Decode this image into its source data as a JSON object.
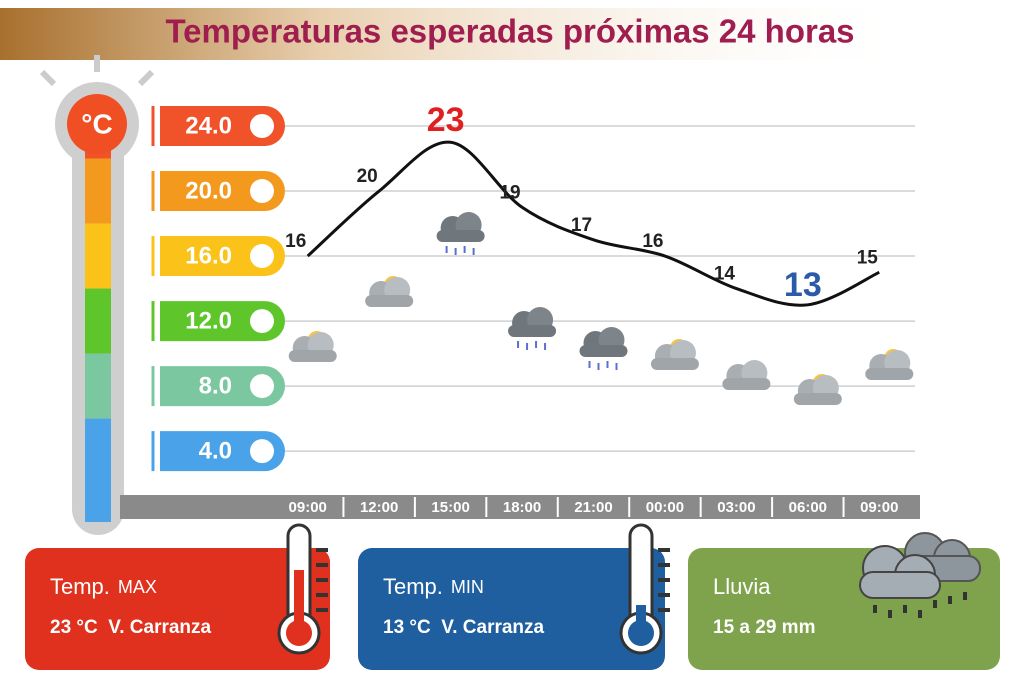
{
  "chart_data": {
    "type": "line",
    "title": "Temperaturas esperadas próximas 24 horas",
    "unit": "°C",
    "categories": [
      "09:00",
      "12:00",
      "15:00",
      "18:00",
      "21:00",
      "00:00",
      "03:00",
      "06:00",
      "09:00"
    ],
    "values": [
      16,
      20,
      23,
      19,
      17,
      16,
      14,
      13,
      15
    ],
    "color": "#111111",
    "max_color": "#e02020",
    "min_color": "#2a5aa8",
    "ylim": [
      1.3,
      25.6
    ],
    "yticks": [
      {
        "value": 24,
        "label": "24.0"
      },
      {
        "value": 20,
        "label": "20.0"
      },
      {
        "value": 16,
        "label": "16.0"
      },
      {
        "value": 12,
        "label": "12.0"
      },
      {
        "value": 8,
        "label": "8.0"
      },
      {
        "value": 4,
        "label": "4.0"
      }
    ],
    "tick_colors": [
      "#f0522a",
      "#f39a1e",
      "#fbc31a",
      "#5ec62b",
      "#7bc8a0",
      "#4aa3e8"
    ],
    "grid": true
  },
  "cards": [
    {
      "label": "Temp.",
      "qualifier": "MAX",
      "detail": "23 °C  V. Carranza",
      "color": "#e0301e"
    },
    {
      "label": "Temp.",
      "qualifier": "MIN",
      "detail": "13 °C  V. Carranza",
      "color": "#1f5fa0"
    },
    {
      "label": "Lluvia",
      "detail": "15 a 29 mm",
      "color": "#7ea34c"
    }
  ]
}
